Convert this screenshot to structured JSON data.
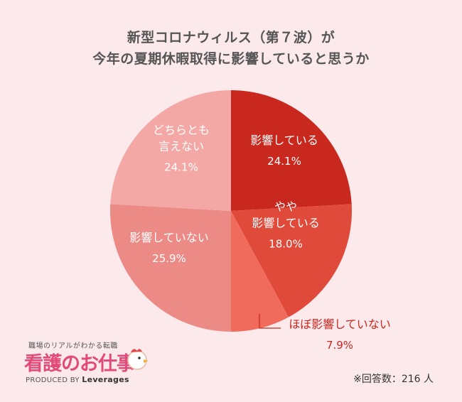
{
  "title": {
    "line1": "新型コロナウィルス（第７波）が",
    "line2": "今年の夏期休暇取得に影響していると思うか"
  },
  "chart_data": {
    "type": "pie",
    "total_respondents": 216,
    "slices": [
      {
        "label_lines": [
          "影響している"
        ],
        "value": 24.1,
        "value_text": "24.1%",
        "color": "#c8281e"
      },
      {
        "label_lines": [
          "やや",
          "影響している"
        ],
        "value": 18.0,
        "value_text": "18.0%",
        "color": "#e04a3b"
      },
      {
        "label_lines": [
          "ほぼ影響していない"
        ],
        "value": 7.9,
        "value_text": "7.9%",
        "color": "#f06b5c"
      },
      {
        "label_lines": [
          "影響していない"
        ],
        "value": 25.9,
        "value_text": "25.9%",
        "color": "#ec8a86"
      },
      {
        "label_lines": [
          "どちらとも",
          "言えない"
        ],
        "value": 24.1,
        "value_text": "24.1%",
        "color": "#f3a8a5"
      }
    ]
  },
  "logo": {
    "tagline": "職場のリアルがわかる転職",
    "name": "看護のお仕事",
    "produced_by": "PRODUCED BY",
    "company": "Leverages"
  },
  "footnote": "※回答数：216 人"
}
